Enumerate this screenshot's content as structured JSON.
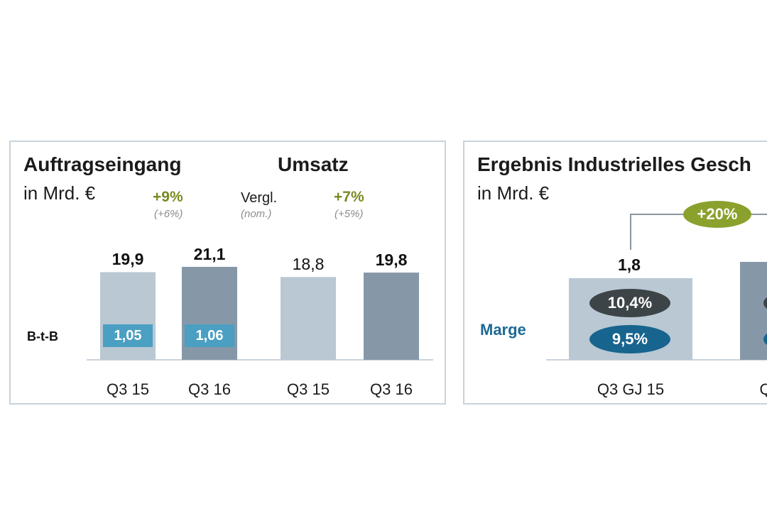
{
  "left_panel": {
    "title_orders": "Auftragseingang",
    "title_revenue": "Umsatz",
    "unit": "in Mrd. €",
    "orders_growth": "+9%",
    "orders_growth_nom": "(+6%)",
    "comparable_label": "Vergl.",
    "nominal_label": "(nom.)",
    "revenue_growth": "+7%",
    "revenue_growth_nom": "(+5%)",
    "btb_label": "B-t-B"
  },
  "right_panel": {
    "title": "Ergebnis Industrielles Gesch",
    "unit": "in Mrd. €",
    "growth_badge": "+20%",
    "margin_label": "Marge"
  },
  "colors": {
    "bar_light": "#b9c8d3",
    "bar_dark": "#8698a8",
    "btb_box": "#4b9fc2",
    "growth_green": "#7a8a22",
    "badge_green": "#8aa12d",
    "margin_dark": "#3d4448",
    "margin_blue": "#17648f"
  },
  "chart_data": [
    {
      "type": "bar",
      "title": "Auftragseingang",
      "categories": [
        "Q3 15",
        "Q3 16"
      ],
      "values": [
        19.9,
        21.1
      ],
      "value_labels": [
        "19,9",
        "21,1"
      ],
      "btb_values": [
        1.05,
        1.06
      ],
      "btb_labels": [
        "1,05",
        "1,06"
      ],
      "ylim": [
        0,
        21.1
      ]
    },
    {
      "type": "bar",
      "title": "Umsatz",
      "categories": [
        "Q3 15",
        "Q3 16"
      ],
      "values": [
        18.8,
        19.8
      ],
      "value_labels": [
        "18,8",
        "19,8"
      ],
      "ylim": [
        0,
        21.1
      ]
    },
    {
      "type": "bar",
      "title": "Ergebnis Industrielles Gesch",
      "categories": [
        "Q3 GJ 15",
        "Q"
      ],
      "values": [
        1.8,
        null
      ],
      "value_labels": [
        "1,8",
        ""
      ],
      "margins": [
        [
          "10,4%",
          "9,5%"
        ],
        []
      ]
    }
  ]
}
